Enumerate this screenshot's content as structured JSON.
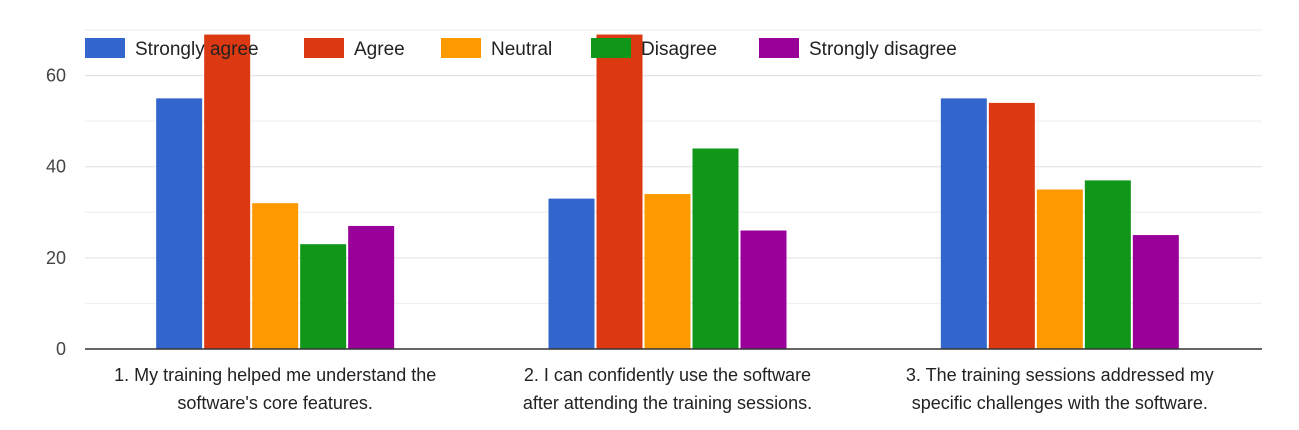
{
  "chart_data": {
    "type": "bar",
    "categories": [
      [
        "1. My training helped me understand the",
        "software's core features."
      ],
      [
        "2. I can confidently use the software",
        "after attending the training sessions."
      ],
      [
        "3. The training sessions addressed my",
        "specific challenges with the software."
      ]
    ],
    "series": [
      {
        "name": "Strongly agree",
        "color": "#3366cc",
        "values": [
          55,
          33,
          55
        ]
      },
      {
        "name": "Agree",
        "color": "#dc3912",
        "values": [
          69,
          69,
          54
        ]
      },
      {
        "name": "Neutral",
        "color": "#ff9900",
        "values": [
          32,
          34,
          35
        ]
      },
      {
        "name": "Disagree",
        "color": "#109618",
        "values": [
          23,
          44,
          37
        ]
      },
      {
        "name": "Strongly disagree",
        "color": "#990099",
        "values": [
          27,
          26,
          25
        ]
      }
    ],
    "ylim": [
      0,
      70
    ],
    "yticks": [
      0,
      20,
      40,
      60
    ],
    "minor_gridlines": [
      10,
      30,
      50,
      70
    ],
    "grid": true,
    "legend_position": "top"
  }
}
